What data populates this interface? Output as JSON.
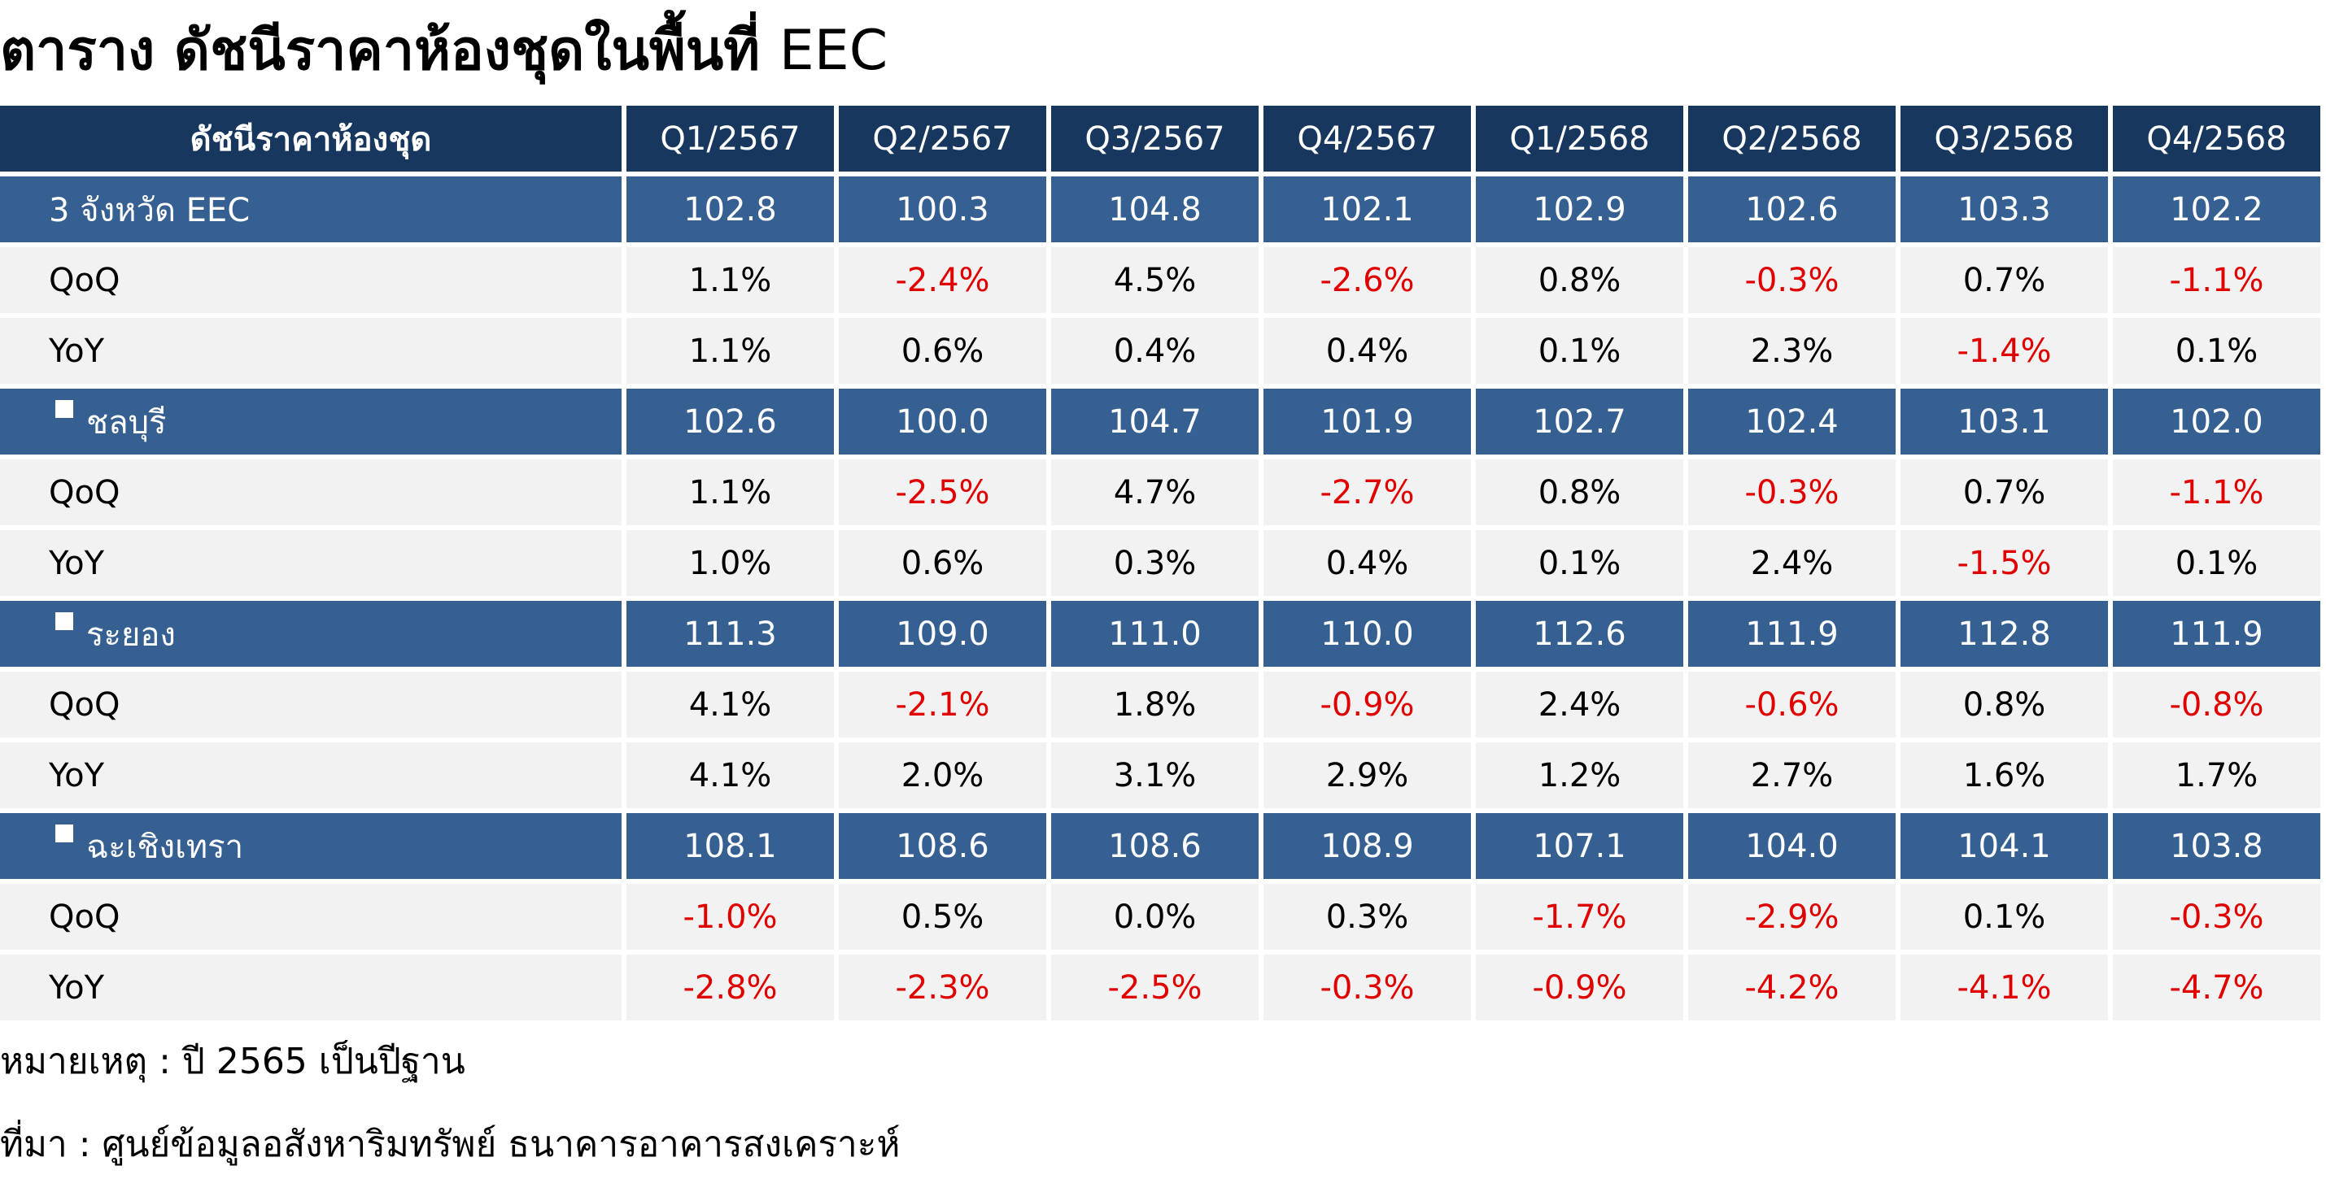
{
  "title": {
    "thai": "ตาราง ดัชนีราคาห้องชุดในพื้นที่",
    "latin": "EEC"
  },
  "table": {
    "header_label": "ดัชนีราคาห้องชุด",
    "columns": [
      "Q1/2567",
      "Q2/2567",
      "Q3/2567",
      "Q4/2567",
      "Q1/2568",
      "Q2/2568",
      "Q3/2568",
      "Q4/2568"
    ],
    "groups": [
      {
        "label": "3 จังหวัด EEC",
        "bullet": false,
        "index": [
          "102.8",
          "100.3",
          "104.8",
          "102.1",
          "102.9",
          "102.6",
          "103.3",
          "102.2"
        ],
        "qoq_label": "QoQ",
        "qoq": [
          "1.1%",
          "-2.4%",
          "4.5%",
          "-2.6%",
          "0.8%",
          "-0.3%",
          "0.7%",
          "-1.1%"
        ],
        "yoy_label": "YoY",
        "yoy": [
          "1.1%",
          "0.6%",
          "0.4%",
          "0.4%",
          "0.1%",
          "2.3%",
          "-1.4%",
          "0.1%"
        ]
      },
      {
        "label": "ชลบุรี",
        "bullet": true,
        "index": [
          "102.6",
          "100.0",
          "104.7",
          "101.9",
          "102.7",
          "102.4",
          "103.1",
          "102.0"
        ],
        "qoq_label": "QoQ",
        "qoq": [
          "1.1%",
          "-2.5%",
          "4.7%",
          "-2.7%",
          "0.8%",
          "-0.3%",
          "0.7%",
          "-1.1%"
        ],
        "yoy_label": "YoY",
        "yoy": [
          "1.0%",
          "0.6%",
          "0.3%",
          "0.4%",
          "0.1%",
          "2.4%",
          "-1.5%",
          "0.1%"
        ]
      },
      {
        "label": "ระยอง",
        "bullet": true,
        "index": [
          "111.3",
          "109.0",
          "111.0",
          "110.0",
          "112.6",
          "111.9",
          "112.8",
          "111.9"
        ],
        "qoq_label": "QoQ",
        "qoq": [
          "4.1%",
          "-2.1%",
          "1.8%",
          "-0.9%",
          "2.4%",
          "-0.6%",
          "0.8%",
          "-0.8%"
        ],
        "yoy_label": "YoY",
        "yoy": [
          "4.1%",
          "2.0%",
          "3.1%",
          "2.9%",
          "1.2%",
          "2.7%",
          "1.6%",
          "1.7%"
        ]
      },
      {
        "label": "ฉะเชิงเทรา",
        "bullet": true,
        "index": [
          "108.1",
          "108.6",
          "108.6",
          "108.9",
          "107.1",
          "104.0",
          "104.1",
          "103.8"
        ],
        "qoq_label": "QoQ",
        "qoq": [
          "-1.0%",
          "0.5%",
          "0.0%",
          "0.3%",
          "-1.7%",
          "-2.9%",
          "0.1%",
          "-0.3%"
        ],
        "yoy_label": "YoY",
        "yoy": [
          "-2.8%",
          "-2.3%",
          "-2.5%",
          "-0.3%",
          "-0.9%",
          "-4.2%",
          "-4.1%",
          "-4.7%"
        ]
      }
    ]
  },
  "notes": {
    "remark": "หมายเหตุ : ปี 2565 เป็นปีฐาน",
    "source": "ที่มา : ศูนย์ข้อมูลอสังหาริมทรัพย์ ธนาคารอาคารสงเคราะห์"
  },
  "colors": {
    "header_bg": "#17375e",
    "index_row_bg": "#366092",
    "sub_row_bg": "#f2f2f2",
    "negative_text": "#e00000"
  }
}
